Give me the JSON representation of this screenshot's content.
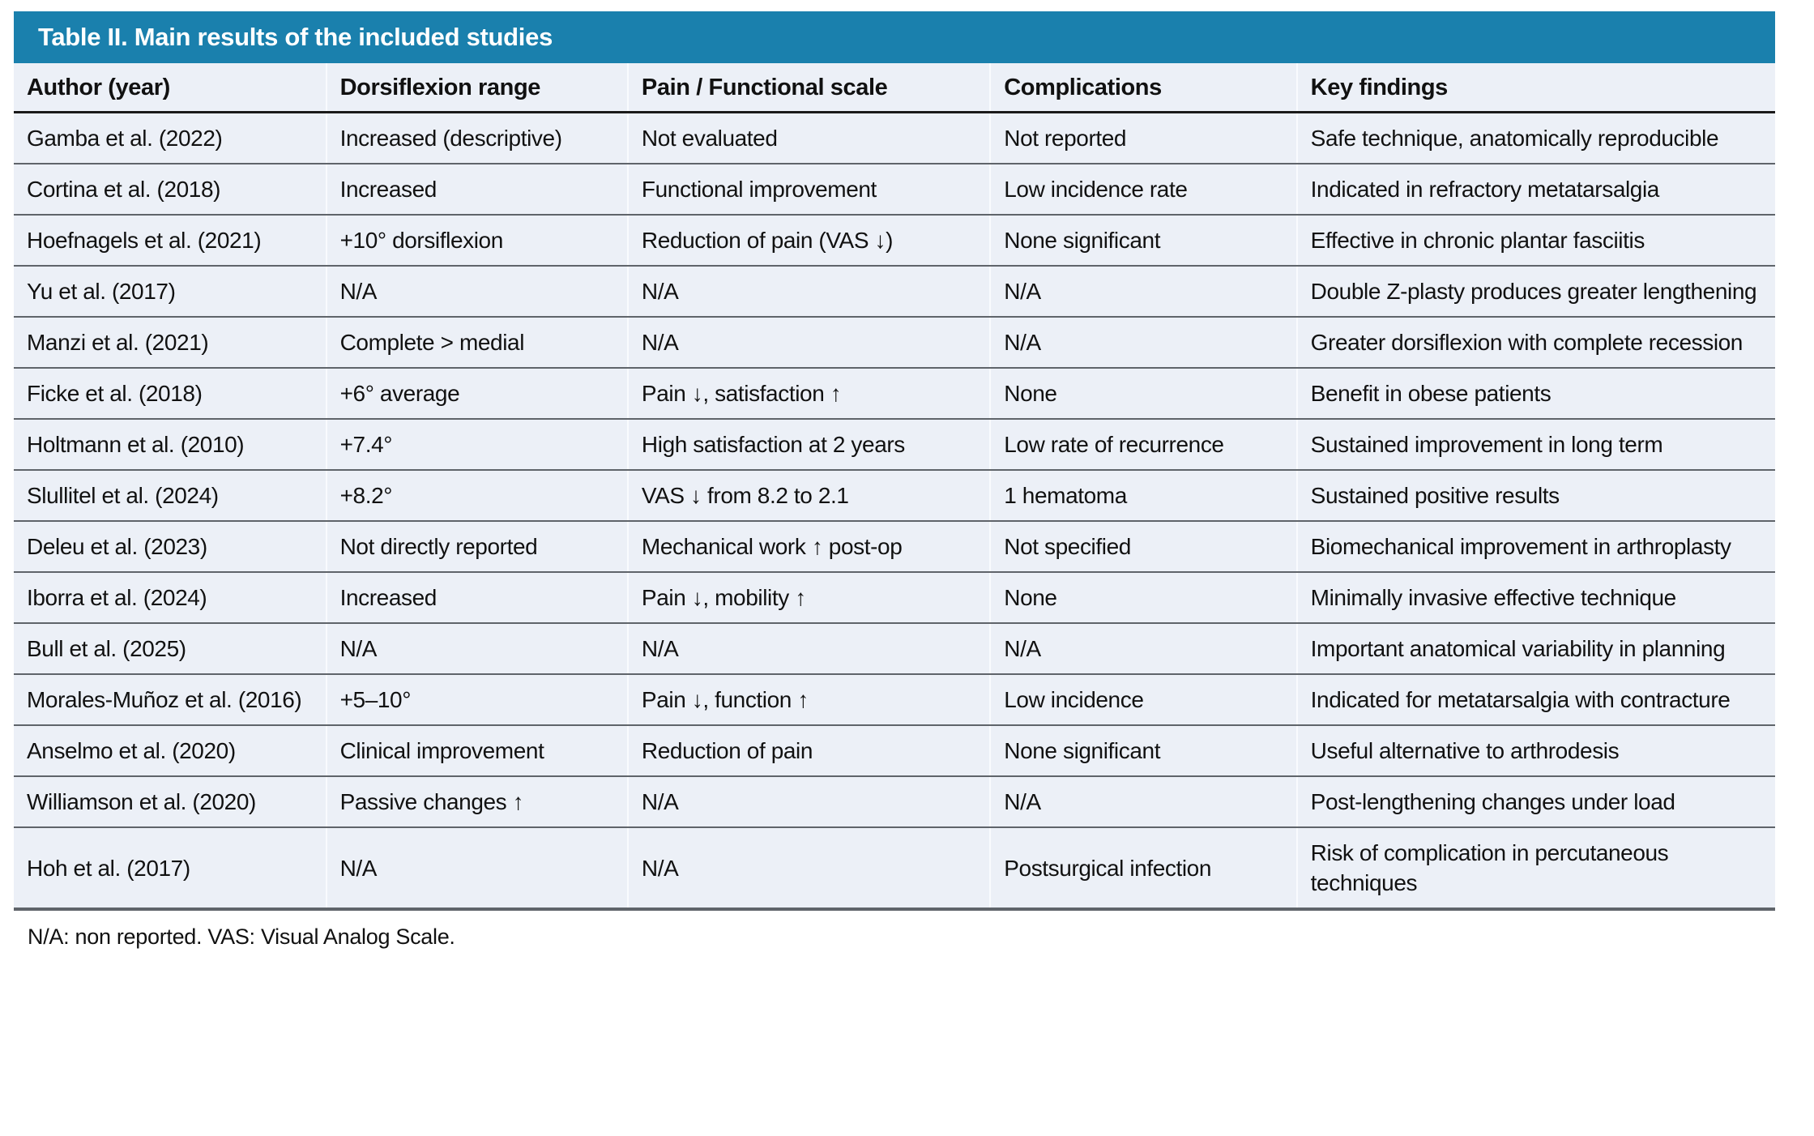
{
  "table": {
    "title": "Table II. Main results of the included studies",
    "columns": [
      "Author (year)",
      "Dorsiflexion range",
      "Pain / Functional scale",
      "Complications",
      "Key findings"
    ],
    "rows": [
      [
        "Gamba et al. (2022)",
        "Increased (descriptive)",
        "Not evaluated",
        "Not reported",
        "Safe technique, anatomically reproducible"
      ],
      [
        "Cortina et al. (2018)",
        "Increased",
        "Functional improvement",
        "Low incidence rate",
        "Indicated in refractory metatarsalgia"
      ],
      [
        "Hoefnagels et al. (2021)",
        "+10° dorsiflexion",
        "Reduction of pain (VAS ↓)",
        "None significant",
        "Effective in chronic plantar fasciitis"
      ],
      [
        "Yu et al. (2017)",
        "N/A",
        "N/A",
        "N/A",
        "Double Z-plasty produces greater lengthening"
      ],
      [
        "Manzi et al. (2021)",
        "Complete > medial",
        "N/A",
        "N/A",
        "Greater dorsiflexion with complete recession"
      ],
      [
        "Ficke et al. (2018)",
        "+6° average",
        "Pain ↓, satisfaction ↑",
        "None",
        "Benefit in obese patients"
      ],
      [
        "Holtmann et al. (2010)",
        "+7.4°",
        "High satisfaction at 2 years",
        "Low rate of recurrence",
        "Sustained improvement in long term"
      ],
      [
        "Slullitel et al. (2024)",
        "+8.2°",
        "VAS ↓ from 8.2 to 2.1",
        "1 hematoma",
        "Sustained positive results"
      ],
      [
        "Deleu et al. (2023)",
        "Not directly reported",
        "Mechanical work ↑ post-op",
        "Not specified",
        "Biomechanical improvement in arthroplasty"
      ],
      [
        "Iborra et al. (2024)",
        "Increased",
        "Pain ↓, mobility ↑",
        "None",
        "Minimally invasive effective technique"
      ],
      [
        "Bull et al. (2025)",
        "N/A",
        "N/A",
        "N/A",
        "Important anatomical variability in planning"
      ],
      [
        "Morales-Muñoz et al. (2016)",
        "+5–10°",
        "Pain ↓, function ↑",
        "Low incidence",
        "Indicated for metatarsalgia with contracture"
      ],
      [
        "Anselmo et al. (2020)",
        "Clinical improvement",
        "Reduction of pain",
        "None significant",
        "Useful alternative to arthrodesis"
      ],
      [
        "Williamson et al. (2020)",
        "Passive changes ↑",
        "N/A",
        "N/A",
        "Post-lengthening changes under load"
      ],
      [
        "Hoh et al. (2017)",
        "N/A",
        "N/A",
        "Postsurgical infection",
        "Risk of complication in percutaneous techniques"
      ]
    ],
    "footnote": "N/A: non reported. VAS: Visual Analog Scale."
  },
  "colors": {
    "title_bar_bg": "#1a80ad",
    "title_text": "#ffffff",
    "row_bg": "#ecf0f7",
    "row_separator": "#5f646a",
    "header_rule": "#1a1a1a",
    "column_separator": "#f9fbfe",
    "body_text": "#111111"
  }
}
